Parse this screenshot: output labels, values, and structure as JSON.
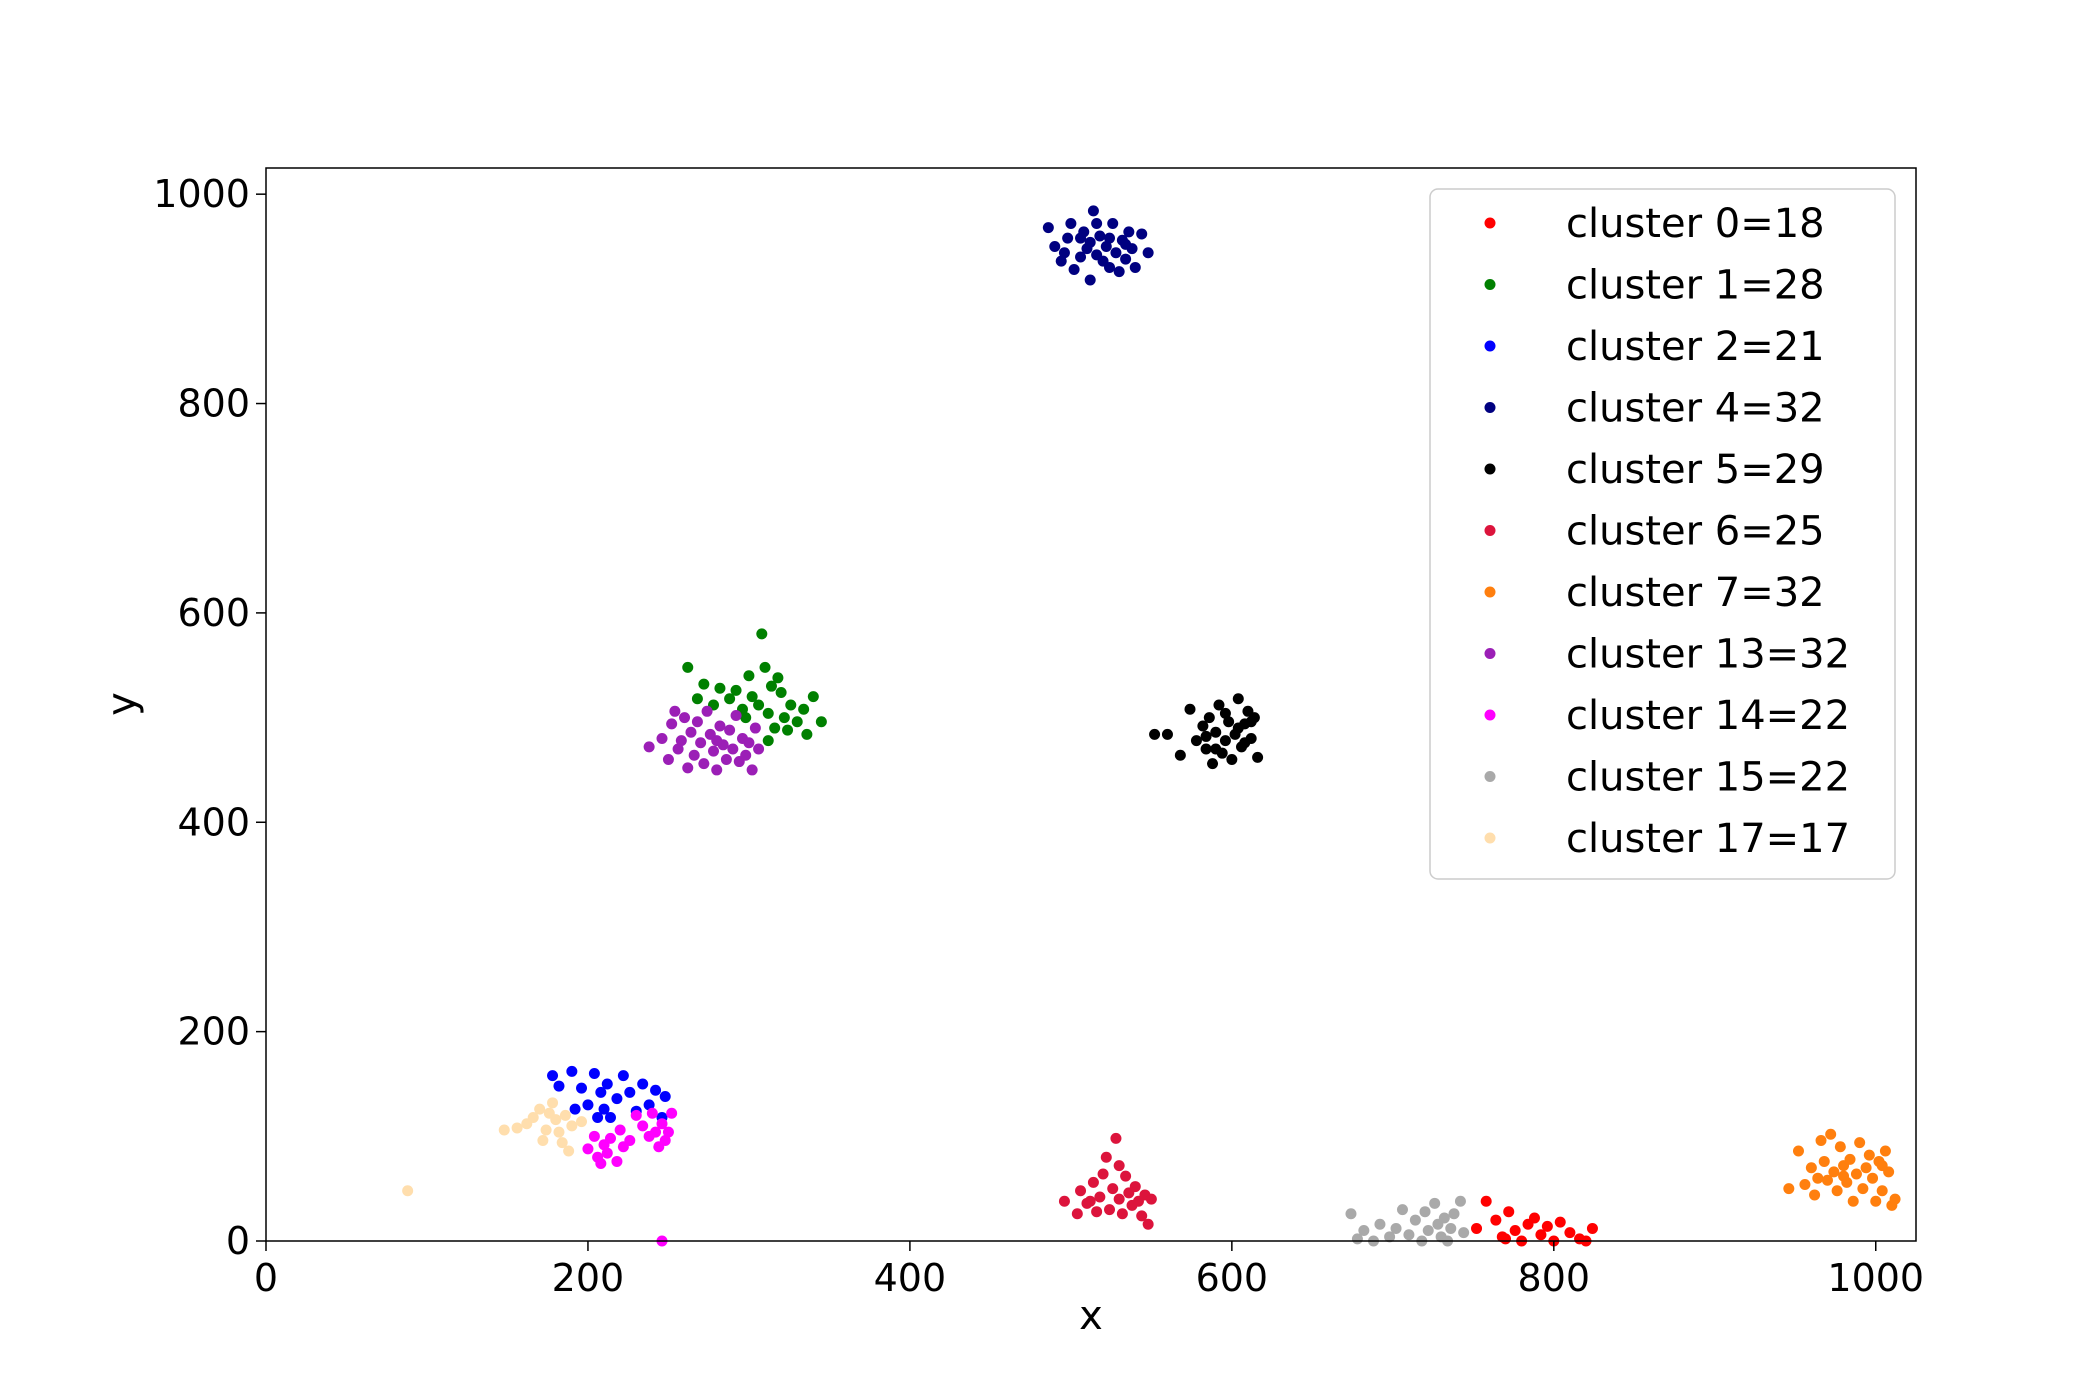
{
  "chart_data": {
    "type": "scatter",
    "title": "",
    "xlabel": "x",
    "ylabel": "y",
    "xlim": [
      0,
      1025
    ],
    "ylim": [
      0,
      1025
    ],
    "xticks": [
      "0",
      "200",
      "400",
      "600",
      "800",
      "1000"
    ],
    "yticks": [
      "0",
      "200",
      "400",
      "600",
      "800",
      "1000"
    ],
    "xtick_values": [
      0,
      200,
      400,
      600,
      800,
      1000
    ],
    "ytick_values": [
      0,
      200,
      400,
      600,
      800,
      1000
    ],
    "grid": false,
    "legend_position": "top-right",
    "series": [
      {
        "name": "cluster 0=18",
        "color": "#ff0000",
        "points": [
          [
            752,
            12
          ],
          [
            758,
            38
          ],
          [
            764,
            20
          ],
          [
            768,
            4
          ],
          [
            772,
            28
          ],
          [
            776,
            10
          ],
          [
            780,
            0
          ],
          [
            784,
            16
          ],
          [
            788,
            22
          ],
          [
            792,
            6
          ],
          [
            796,
            14
          ],
          [
            800,
            0
          ],
          [
            804,
            18
          ],
          [
            810,
            8
          ],
          [
            816,
            2
          ],
          [
            820,
            0
          ],
          [
            824,
            12
          ],
          [
            770,
            2
          ]
        ]
      },
      {
        "name": "cluster 1=28",
        "color": "#008000",
        "points": [
          [
            262,
            548
          ],
          [
            268,
            518
          ],
          [
            272,
            532
          ],
          [
            278,
            512
          ],
          [
            282,
            528
          ],
          [
            288,
            518
          ],
          [
            292,
            526
          ],
          [
            296,
            508
          ],
          [
            300,
            540
          ],
          [
            302,
            520
          ],
          [
            306,
            512
          ],
          [
            308,
            580
          ],
          [
            310,
            548
          ],
          [
            312,
            504
          ],
          [
            314,
            530
          ],
          [
            316,
            490
          ],
          [
            318,
            538
          ],
          [
            320,
            524
          ],
          [
            322,
            500
          ],
          [
            324,
            488
          ],
          [
            326,
            512
          ],
          [
            330,
            496
          ],
          [
            334,
            508
          ],
          [
            336,
            484
          ],
          [
            340,
            520
          ],
          [
            345,
            496
          ],
          [
            312,
            478
          ],
          [
            298,
            500
          ]
        ]
      },
      {
        "name": "cluster 2=21",
        "color": "#0000ff",
        "points": [
          [
            178,
            158
          ],
          [
            182,
            148
          ],
          [
            190,
            162
          ],
          [
            196,
            146
          ],
          [
            200,
            130
          ],
          [
            204,
            160
          ],
          [
            208,
            142
          ],
          [
            210,
            126
          ],
          [
            212,
            150
          ],
          [
            214,
            118
          ],
          [
            218,
            136
          ],
          [
            222,
            158
          ],
          [
            226,
            142
          ],
          [
            230,
            124
          ],
          [
            234,
            150
          ],
          [
            238,
            130
          ],
          [
            242,
            144
          ],
          [
            246,
            118
          ],
          [
            248,
            138
          ],
          [
            206,
            118
          ],
          [
            192,
            126
          ]
        ]
      },
      {
        "name": "cluster 4=32",
        "color": "#000080",
        "points": [
          [
            486,
            968
          ],
          [
            490,
            950
          ],
          [
            494,
            936
          ],
          [
            496,
            944
          ],
          [
            500,
            972
          ],
          [
            502,
            928
          ],
          [
            506,
            958
          ],
          [
            508,
            964
          ],
          [
            510,
            948
          ],
          [
            512,
            918
          ],
          [
            514,
            984
          ],
          [
            516,
            942
          ],
          [
            518,
            960
          ],
          [
            520,
            936
          ],
          [
            522,
            950
          ],
          [
            524,
            930
          ],
          [
            526,
            972
          ],
          [
            528,
            944
          ],
          [
            530,
            926
          ],
          [
            532,
            956
          ],
          [
            534,
            938
          ],
          [
            536,
            964
          ],
          [
            538,
            948
          ],
          [
            540,
            930
          ],
          [
            544,
            962
          ],
          [
            548,
            944
          ],
          [
            506,
            940
          ],
          [
            516,
            972
          ],
          [
            524,
            958
          ],
          [
            534,
            952
          ],
          [
            498,
            958
          ],
          [
            512,
            954
          ]
        ]
      },
      {
        "name": "cluster 5=29",
        "color": "#000000",
        "points": [
          [
            552,
            484
          ],
          [
            560,
            484
          ],
          [
            568,
            464
          ],
          [
            574,
            508
          ],
          [
            578,
            478
          ],
          [
            582,
            492
          ],
          [
            584,
            470
          ],
          [
            586,
            500
          ],
          [
            588,
            456
          ],
          [
            590,
            486
          ],
          [
            592,
            512
          ],
          [
            594,
            466
          ],
          [
            596,
            478
          ],
          [
            598,
            496
          ],
          [
            600,
            460
          ],
          [
            602,
            484
          ],
          [
            604,
            518
          ],
          [
            606,
            472
          ],
          [
            608,
            494
          ],
          [
            610,
            506
          ],
          [
            612,
            480
          ],
          [
            614,
            500
          ],
          [
            616,
            462
          ],
          [
            596,
            504
          ],
          [
            584,
            482
          ],
          [
            604,
            490
          ],
          [
            608,
            476
          ],
          [
            590,
            470
          ],
          [
            612,
            496
          ]
        ]
      },
      {
        "name": "cluster 6=25",
        "color": "#dc143c",
        "points": [
          [
            496,
            38
          ],
          [
            504,
            26
          ],
          [
            506,
            48
          ],
          [
            510,
            36
          ],
          [
            514,
            56
          ],
          [
            516,
            28
          ],
          [
            518,
            42
          ],
          [
            520,
            64
          ],
          [
            522,
            80
          ],
          [
            524,
            30
          ],
          [
            526,
            50
          ],
          [
            528,
            98
          ],
          [
            530,
            40
          ],
          [
            532,
            26
          ],
          [
            534,
            62
          ],
          [
            536,
            46
          ],
          [
            538,
            34
          ],
          [
            540,
            52
          ],
          [
            542,
            38
          ],
          [
            544,
            24
          ],
          [
            546,
            44
          ],
          [
            548,
            16
          ],
          [
            550,
            40
          ],
          [
            512,
            38
          ],
          [
            530,
            72
          ]
        ]
      },
      {
        "name": "cluster 7=32",
        "color": "#ff7f0e",
        "points": [
          [
            946,
            50
          ],
          [
            952,
            86
          ],
          [
            956,
            54
          ],
          [
            960,
            70
          ],
          [
            962,
            44
          ],
          [
            964,
            60
          ],
          [
            966,
            96
          ],
          [
            968,
            76
          ],
          [
            970,
            58
          ],
          [
            972,
            102
          ],
          [
            974,
            66
          ],
          [
            976,
            48
          ],
          [
            978,
            90
          ],
          [
            980,
            72
          ],
          [
            982,
            56
          ],
          [
            984,
            78
          ],
          [
            986,
            38
          ],
          [
            988,
            64
          ],
          [
            990,
            94
          ],
          [
            992,
            50
          ],
          [
            994,
            70
          ],
          [
            996,
            82
          ],
          [
            998,
            60
          ],
          [
            1000,
            38
          ],
          [
            1002,
            76
          ],
          [
            1004,
            48
          ],
          [
            1006,
            86
          ],
          [
            1008,
            66
          ],
          [
            1010,
            34
          ],
          [
            1012,
            40
          ],
          [
            980,
            62
          ],
          [
            1004,
            72
          ]
        ]
      },
      {
        "name": "cluster 13=32",
        "color": "#9b1fb6",
        "points": [
          [
            238,
            472
          ],
          [
            246,
            480
          ],
          [
            250,
            460
          ],
          [
            252,
            494
          ],
          [
            254,
            506
          ],
          [
            256,
            470
          ],
          [
            258,
            478
          ],
          [
            260,
            500
          ],
          [
            262,
            452
          ],
          [
            264,
            486
          ],
          [
            266,
            464
          ],
          [
            268,
            496
          ],
          [
            270,
            476
          ],
          [
            272,
            456
          ],
          [
            274,
            506
          ],
          [
            276,
            484
          ],
          [
            278,
            468
          ],
          [
            280,
            450
          ],
          [
            282,
            492
          ],
          [
            284,
            474
          ],
          [
            286,
            460
          ],
          [
            288,
            488
          ],
          [
            290,
            470
          ],
          [
            292,
            502
          ],
          [
            294,
            458
          ],
          [
            296,
            480
          ],
          [
            298,
            464
          ],
          [
            300,
            476
          ],
          [
            302,
            450
          ],
          [
            304,
            490
          ],
          [
            306,
            470
          ],
          [
            280,
            478
          ]
        ]
      },
      {
        "name": "cluster 14=22",
        "color": "#ff00ff",
        "points": [
          [
            200,
            88
          ],
          [
            204,
            100
          ],
          [
            206,
            80
          ],
          [
            208,
            74
          ],
          [
            210,
            92
          ],
          [
            212,
            84
          ],
          [
            214,
            98
          ],
          [
            218,
            76
          ],
          [
            220,
            106
          ],
          [
            222,
            90
          ],
          [
            226,
            96
          ],
          [
            230,
            120
          ],
          [
            234,
            110
          ],
          [
            238,
            100
          ],
          [
            240,
            122
          ],
          [
            242,
            104
          ],
          [
            244,
            90
          ],
          [
            246,
            112
          ],
          [
            248,
            96
          ],
          [
            250,
            104
          ],
          [
            252,
            122
          ],
          [
            246,
            0
          ]
        ]
      },
      {
        "name": "cluster 15=22",
        "color": "#a9a9a9",
        "points": [
          [
            674,
            26
          ],
          [
            678,
            2
          ],
          [
            682,
            10
          ],
          [
            688,
            0
          ],
          [
            692,
            16
          ],
          [
            698,
            4
          ],
          [
            702,
            12
          ],
          [
            706,
            30
          ],
          [
            710,
            6
          ],
          [
            714,
            20
          ],
          [
            718,
            0
          ],
          [
            720,
            28
          ],
          [
            722,
            10
          ],
          [
            726,
            36
          ],
          [
            728,
            16
          ],
          [
            730,
            4
          ],
          [
            732,
            22
          ],
          [
            734,
            0
          ],
          [
            736,
            12
          ],
          [
            738,
            26
          ],
          [
            742,
            38
          ],
          [
            744,
            8
          ]
        ]
      },
      {
        "name": "cluster 17=17",
        "color": "#ffdead",
        "points": [
          [
            88,
            48
          ],
          [
            148,
            106
          ],
          [
            156,
            108
          ],
          [
            162,
            112
          ],
          [
            166,
            118
          ],
          [
            170,
            126
          ],
          [
            172,
            96
          ],
          [
            174,
            106
          ],
          [
            176,
            122
          ],
          [
            178,
            132
          ],
          [
            180,
            116
          ],
          [
            182,
            104
          ],
          [
            184,
            94
          ],
          [
            186,
            120
          ],
          [
            188,
            86
          ],
          [
            190,
            110
          ],
          [
            196,
            114
          ]
        ]
      }
    ]
  }
}
